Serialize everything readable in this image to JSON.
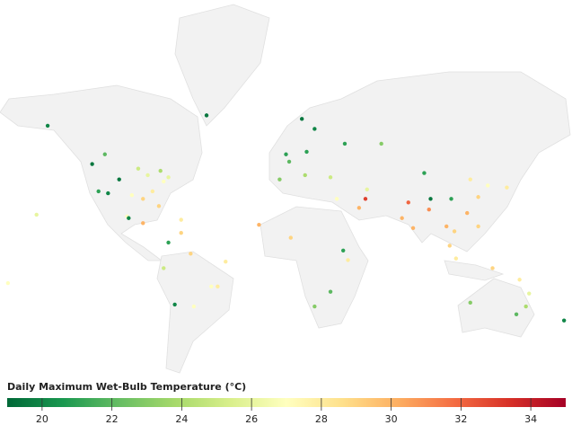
{
  "chart_data": {
    "type": "map",
    "title": "Daily Maximum Wet-Bulb Temperature (°C)",
    "clim": [
      19,
      35
    ],
    "ticks": [
      20,
      22,
      24,
      26,
      28,
      30,
      32,
      34
    ],
    "colors": [
      "#006837",
      "#1a9850",
      "#66bd63",
      "#a6d96a",
      "#d9ef8b",
      "#ffffbf",
      "#fee08b",
      "#fdae61",
      "#f46d43",
      "#d73027",
      "#a50026"
    ],
    "lon": [
      -122,
      -118,
      -112,
      -105,
      -97,
      -90,
      -84,
      -77,
      -74,
      -87,
      -93,
      -80,
      -100,
      -99,
      -90,
      -150,
      -114,
      -79,
      -66,
      -47,
      -43,
      -58,
      -70,
      -77,
      -60,
      -38,
      -66,
      -74,
      0,
      2,
      13,
      18,
      -4,
      12,
      37,
      28,
      10,
      -17,
      3,
      32,
      36,
      28,
      18,
      39,
      46,
      77,
      73,
      80,
      90,
      101,
      106,
      116,
      121,
      114,
      127,
      139,
      104,
      91,
      87,
      60,
      51,
      103,
      121,
      107,
      50,
      151,
      145,
      153,
      116,
      130,
      147,
      175,
      -157,
      -50,
      -175
    ],
    "lat": [
      47,
      34,
      33,
      40,
      32,
      30,
      34,
      39,
      41,
      42,
      45,
      26,
      20,
      19,
      16,
      61,
      51,
      44,
      18,
      -23,
      -23,
      -34,
      -33,
      -12,
      -3,
      -8,
      10,
      4,
      51,
      48,
      52,
      60,
      40,
      42,
      55,
      41,
      63,
      15,
      7,
      30,
      -1,
      -26,
      -34,
      -7,
      25,
      28,
      19,
      13,
      24,
      14,
      11,
      40,
      31,
      22,
      37,
      36,
      30,
      30,
      43,
      55,
      35,
      2,
      14,
      -6,
      30,
      -34,
      -38,
      -27,
      -32,
      -12,
      -19,
      -41,
      21,
      64,
      -21
    ],
    "values": [
      19.5,
      21,
      20,
      19.5,
      27,
      29,
      28,
      27,
      26,
      26,
      25,
      29,
      27,
      20,
      30,
      20,
      22,
      24,
      28,
      27,
      28,
      27,
      20,
      25,
      29,
      28,
      29,
      21,
      21,
      22,
      21,
      20,
      23,
      24,
      21,
      25,
      19.5,
      30,
      29,
      27,
      21,
      22,
      23,
      28,
      30,
      32,
      30,
      30,
      31,
      30,
      29,
      28,
      29,
      30,
      27,
      28,
      21,
      19.5,
      21,
      23,
      26,
      29,
      29,
      28,
      33,
      24,
      22,
      26,
      23,
      29,
      28,
      20,
      26,
      19.5,
      27
    ]
  }
}
